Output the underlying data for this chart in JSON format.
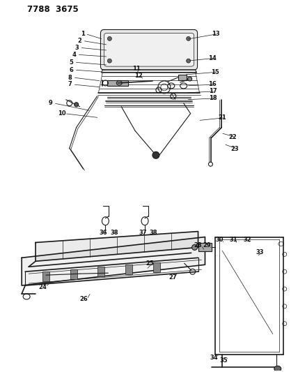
{
  "title": "7788 3675",
  "bg_color": "#ffffff",
  "line_color": "#1a1a1a",
  "label_color": "#111111",
  "label_fontsize": 6.0,
  "title_fontsize": 8.5
}
